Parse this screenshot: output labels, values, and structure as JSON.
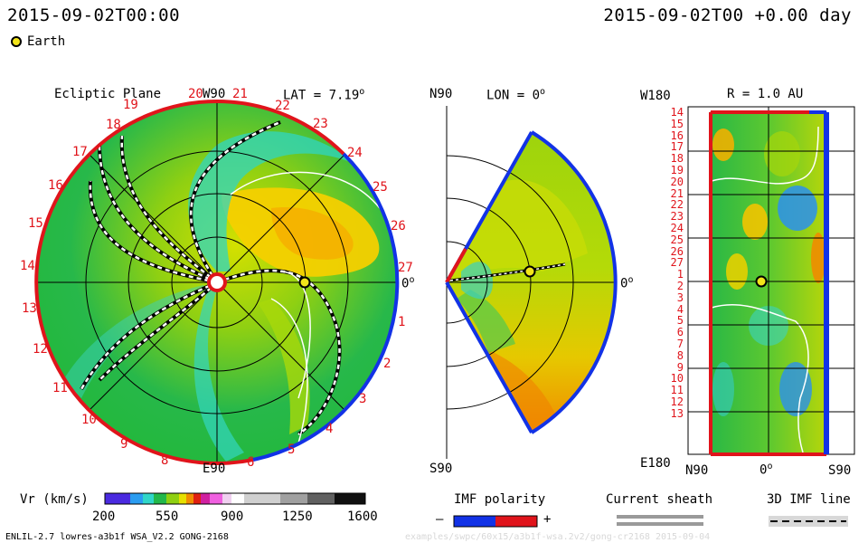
{
  "header": {
    "datetime_left": "2015-09-02T00:00",
    "datetime_right": "2015-09-02T00 +0.00 day",
    "legend_earth": "Earth"
  },
  "ecliptic": {
    "title": "Ecliptic Plane",
    "top_label": "W90",
    "lat_label": "LAT = 7.19",
    "deg": "o",
    "bottom_label": "E90",
    "right_label": "0",
    "carrington_left": [
      "19",
      "18",
      "17",
      "16",
      "15",
      "14",
      "13",
      "12",
      "11",
      "10",
      "9",
      "8"
    ],
    "carrington_right": [
      "20",
      "21",
      "22",
      "23",
      "24",
      "25",
      "26",
      "27",
      "1",
      "2",
      "3",
      "4",
      "5",
      "6"
    ]
  },
  "meridional": {
    "top_label": "N90",
    "lon_label": "LON = 0",
    "bottom_label": "S90",
    "right_label": "0"
  },
  "radial": {
    "top_label": "W180",
    "r_label": "R = 1.0 AU",
    "bottom_label": "E180",
    "lat_left": "N90",
    "lat_mid": "0",
    "lat_right": "S90",
    "rows": [
      "14",
      "15",
      "16",
      "17",
      "18",
      "19",
      "20",
      "21",
      "22",
      "23",
      "24",
      "25",
      "26",
      "27",
      "1",
      "2",
      "3",
      "4",
      "5",
      "6",
      "7",
      "8",
      "9",
      "10",
      "11",
      "12",
      "13"
    ]
  },
  "colorbar": {
    "title": "Vr (km/s)",
    "ticks": [
      "200",
      "550",
      "900",
      "1250",
      "1600"
    ]
  },
  "legends": {
    "imf_polarity": "IMF polarity",
    "minus": "–",
    "plus": "+",
    "current_sheath": "Current sheath",
    "imf_line": "3D IMF line"
  },
  "footer": {
    "left": "ENLIL-2.7 lowres-a3b1f WSA_V2.2 GONG-2168",
    "right": "examples/swpc/60x15/a3b1f-wsa.2v2/gong-cr2168    2015-09-04"
  },
  "colors": {
    "positive_polarity": "#e0141b",
    "negative_polarity": "#1232e6",
    "earth": "#f2e41a",
    "axis_label": "#e0141b"
  }
}
